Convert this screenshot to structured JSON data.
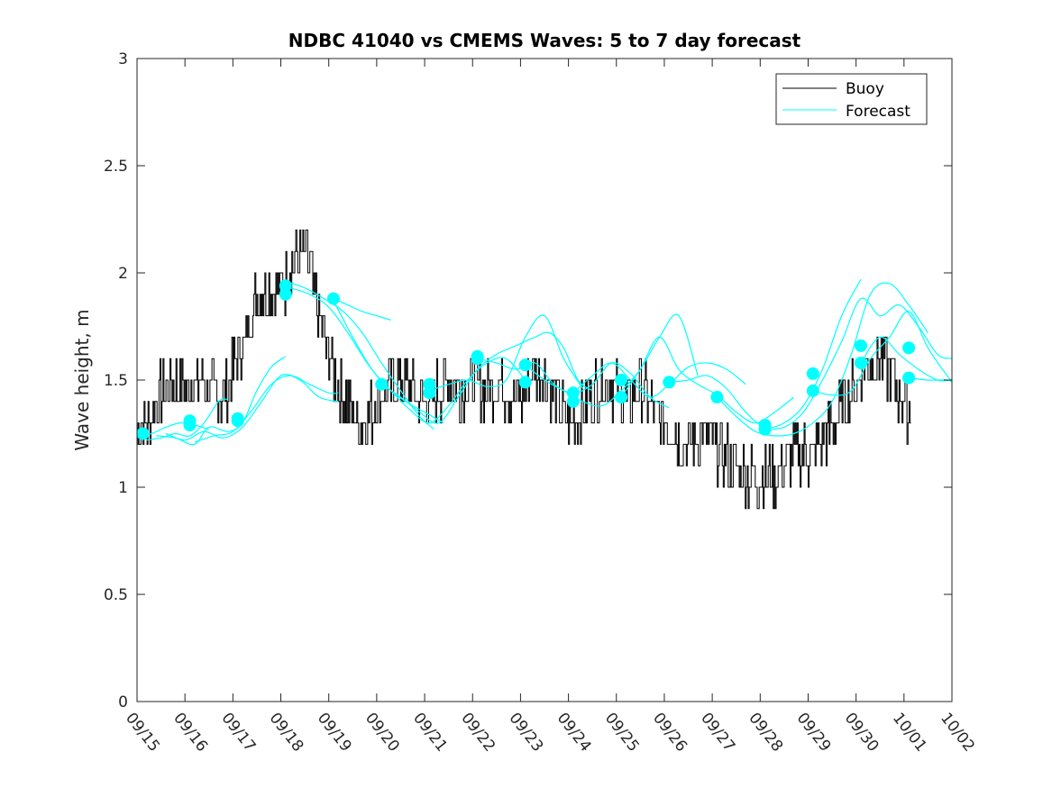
{
  "chart_data": {
    "type": "line",
    "title": "NDBC 41040 vs CMEMS Waves: 5 to 7 day forecast",
    "xlabel": "",
    "ylabel": "Wave height, m",
    "xlim": [
      0,
      17
    ],
    "ylim": [
      0,
      3
    ],
    "x_ticks": [
      0,
      1,
      2,
      3,
      4,
      5,
      6,
      7,
      8,
      9,
      10,
      11,
      12,
      13,
      14,
      15,
      16,
      17
    ],
    "x_tick_labels": [
      "09/15",
      "09/16",
      "09/17",
      "09/18",
      "09/19",
      "09/20",
      "09/21",
      "09/22",
      "09/23",
      "09/24",
      "09/25",
      "09/26",
      "09/27",
      "09/28",
      "09/29",
      "09/30",
      "10/01",
      "10/02"
    ],
    "y_ticks": [
      0,
      0.5,
      1,
      1.5,
      2,
      2.5,
      3
    ],
    "y_tick_labels": [
      "0",
      "0.5",
      "1",
      "1.5",
      "2",
      "2.5",
      "3"
    ],
    "grid": false,
    "legend": {
      "position": "top-right",
      "entries": [
        {
          "name": "Buoy",
          "color": "#000000"
        },
        {
          "name": "Forecast",
          "color": "#00ffff"
        }
      ]
    },
    "colors": {
      "buoy": "#000000",
      "forecast": "#00ffff"
    },
    "buoy": {
      "name": "Buoy",
      "x": [
        0,
        0.25,
        0.5,
        0.75,
        1,
        1.25,
        1.5,
        1.75,
        2,
        2.25,
        2.5,
        2.75,
        3,
        3.25,
        3.5,
        3.75,
        4,
        4.25,
        4.5,
        4.75,
        5,
        5.25,
        5.5,
        5.75,
        6,
        6.25,
        6.5,
        6.75,
        7,
        7.25,
        7.5,
        7.75,
        8,
        8.25,
        8.5,
        8.75,
        9,
        9.25,
        9.5,
        9.75,
        10,
        10.25,
        10.5,
        10.75,
        11,
        11.25,
        11.5,
        11.75,
        12,
        12.25,
        12.5,
        12.75,
        13,
        13.25,
        13.5,
        13.75,
        14,
        14.25,
        14.5,
        14.75,
        15,
        15.25,
        15.5,
        15.75,
        16,
        16.15
      ],
      "y": [
        1.25,
        1.3,
        1.45,
        1.5,
        1.45,
        1.5,
        1.45,
        1.4,
        1.55,
        1.7,
        1.9,
        1.95,
        1.9,
        2.05,
        2.1,
        1.85,
        1.6,
        1.45,
        1.35,
        1.3,
        1.4,
        1.45,
        1.5,
        1.45,
        1.4,
        1.45,
        1.5,
        1.45,
        1.5,
        1.45,
        1.5,
        1.45,
        1.4,
        1.55,
        1.5,
        1.4,
        1.3,
        1.35,
        1.45,
        1.5,
        1.45,
        1.4,
        1.5,
        1.35,
        1.3,
        1.25,
        1.2,
        1.25,
        1.2,
        1.15,
        1.1,
        1.05,
        1.05,
        1.05,
        1.1,
        1.15,
        1.15,
        1.2,
        1.3,
        1.4,
        1.5,
        1.6,
        1.6,
        1.5,
        1.4,
        1.35
      ]
    },
    "forecast": {
      "name": "Forecast",
      "series": [
        {
          "x": [
            0,
            0.3,
            0.6,
            0.9,
            1.2,
            1.5
          ],
          "y": [
            1.24,
            1.25,
            1.28,
            1.3,
            1.29,
            1.27
          ]
        },
        {
          "x": [
            0.2,
            0.5,
            0.8,
            1.1,
            1.4,
            1.7,
            1.9
          ],
          "y": [
            1.22,
            1.23,
            1.25,
            1.24,
            1.3,
            1.4,
            1.41
          ]
        },
        {
          "x": [
            0.4,
            0.8,
            1.2,
            1.5,
            1.9,
            2.2,
            2.5,
            2.8,
            3.1
          ],
          "y": [
            1.24,
            1.23,
            1.2,
            1.28,
            1.26,
            1.3,
            1.45,
            1.56,
            1.61
          ]
        },
        {
          "x": [
            0.6,
            1,
            1.4,
            1.8,
            2.2,
            2.6,
            3,
            3.4,
            3.8,
            4.2
          ],
          "y": [
            1.25,
            1.22,
            1.26,
            1.23,
            1.28,
            1.4,
            1.52,
            1.5,
            1.42,
            1.4
          ]
        },
        {
          "x": [
            1.2,
            1.6,
            2,
            2.4,
            2.8,
            3.2,
            3.6,
            4,
            4.2
          ],
          "y": [
            1.21,
            1.24,
            1.26,
            1.36,
            1.48,
            1.52,
            1.48,
            1.44,
            1.44
          ]
        },
        {
          "x": [
            3.1,
            3.5,
            3.9,
            4.3,
            4.7,
            5.1,
            5.5,
            5.9,
            6.2
          ],
          "y": [
            1.96,
            1.93,
            1.88,
            1.82,
            1.72,
            1.58,
            1.45,
            1.33,
            1.27
          ]
        },
        {
          "x": [
            3.2,
            3.6,
            4,
            4.4,
            4.8,
            5.2,
            5.6,
            6,
            6.4
          ],
          "y": [
            1.93,
            1.9,
            1.84,
            1.72,
            1.58,
            1.47,
            1.4,
            1.35,
            1.3
          ]
        },
        {
          "x": [
            4.1,
            4.4,
            4.7,
            5,
            5.3
          ],
          "y": [
            1.88,
            1.85,
            1.82,
            1.8,
            1.78
          ]
        },
        {
          "x": [
            4.1,
            4.5,
            4.9,
            5.3,
            5.7,
            6.1,
            6.5,
            6.9,
            7.3,
            7.7,
            8.1
          ],
          "y": [
            1.87,
            1.7,
            1.55,
            1.45,
            1.36,
            1.3,
            1.38,
            1.5,
            1.58,
            1.6,
            1.5
          ]
        },
        {
          "x": [
            5.1,
            5.5,
            5.9,
            6.3,
            6.7,
            7.1,
            7.5,
            7.9,
            8.3,
            8.6,
            8.9,
            9.2,
            9.5
          ],
          "y": [
            1.48,
            1.42,
            1.35,
            1.3,
            1.42,
            1.55,
            1.62,
            1.66,
            1.7,
            1.72,
            1.65,
            1.5,
            1.45
          ]
        },
        {
          "x": [
            6.1,
            6.5,
            6.9,
            7.3,
            7.7,
            8.1,
            8.5,
            8.9,
            9.3
          ],
          "y": [
            1.45,
            1.48,
            1.5,
            1.47,
            1.5,
            1.7,
            1.8,
            1.6,
            1.46
          ]
        },
        {
          "x": [
            7.1,
            7.5,
            7.9,
            8.3,
            8.7,
            9.1,
            9.5,
            9.9,
            10.3,
            10.7,
            11.1
          ],
          "y": [
            1.6,
            1.58,
            1.55,
            1.58,
            1.48,
            1.44,
            1.48,
            1.58,
            1.53,
            1.42,
            1.37
          ]
        },
        {
          "x": [
            8.1,
            8.5,
            8.9,
            9.3,
            9.7,
            10.1,
            10.5,
            10.9,
            11.3,
            11.7
          ],
          "y": [
            1.57,
            1.5,
            1.45,
            1.4,
            1.38,
            1.45,
            1.55,
            1.7,
            1.8,
            1.52
          ]
        },
        {
          "x": [
            9.1,
            9.5,
            9.9,
            10.3,
            10.7,
            11.1,
            11.5,
            11.9,
            12.3,
            12.7
          ],
          "y": [
            1.44,
            1.52,
            1.58,
            1.5,
            1.42,
            1.48,
            1.56,
            1.58,
            1.55,
            1.48
          ]
        },
        {
          "x": [
            10.1,
            10.5,
            10.9,
            11.3,
            11.7,
            12.1,
            12.5,
            12.9,
            13.3,
            13.7
          ],
          "y": [
            1.42,
            1.55,
            1.7,
            1.55,
            1.48,
            1.43,
            1.35,
            1.3,
            1.35,
            1.42
          ]
        },
        {
          "x": [
            11.1,
            11.5,
            11.9,
            12.3,
            12.7,
            13.1,
            13.5,
            13.9,
            14.3,
            14.7,
            15.1
          ],
          "y": [
            1.49,
            1.5,
            1.52,
            1.46,
            1.35,
            1.28,
            1.3,
            1.38,
            1.55,
            1.8,
            1.97
          ]
        },
        {
          "x": [
            12.1,
            12.5,
            12.9,
            13.3,
            13.7,
            14.1,
            14.5,
            14.9,
            15.3,
            15.7,
            16.1,
            16.5
          ],
          "y": [
            1.42,
            1.33,
            1.26,
            1.24,
            1.25,
            1.3,
            1.4,
            1.62,
            1.9,
            1.95,
            1.85,
            1.72
          ]
        },
        {
          "x": [
            13.1,
            13.5,
            13.9,
            14.3,
            14.7,
            15.1,
            15.5,
            15.9,
            16.3,
            16.7,
            17
          ],
          "y": [
            1.27,
            1.28,
            1.35,
            1.5,
            1.68,
            1.88,
            1.8,
            1.85,
            1.75,
            1.62,
            1.6
          ]
        },
        {
          "x": [
            14.1,
            14.5,
            14.9,
            15.3,
            15.7,
            16.1,
            16.5,
            16.9,
            17
          ],
          "y": [
            1.45,
            1.43,
            1.45,
            1.6,
            1.7,
            1.82,
            1.65,
            1.52,
            1.5
          ]
        },
        {
          "x": [
            15.1,
            15.5,
            15.9,
            16.3,
            16.7,
            17
          ],
          "y": [
            1.58,
            1.7,
            1.62,
            1.55,
            1.5,
            1.5
          ]
        },
        {
          "x": [
            16.1,
            16.5,
            16.9,
            17
          ],
          "y": [
            1.51,
            1.5,
            1.5,
            1.49
          ]
        }
      ],
      "dots": [
        {
          "x": 0.12,
          "y": 1.25
        },
        {
          "x": 1.1,
          "y": 1.31
        },
        {
          "x": 1.1,
          "y": 1.29
        },
        {
          "x": 2.1,
          "y": 1.32
        },
        {
          "x": 2.1,
          "y": 1.31
        },
        {
          "x": 3.1,
          "y": 1.94
        },
        {
          "x": 3.1,
          "y": 1.9
        },
        {
          "x": 4.1,
          "y": 1.88
        },
        {
          "x": 5.1,
          "y": 1.48
        },
        {
          "x": 6.1,
          "y": 1.48
        },
        {
          "x": 6.1,
          "y": 1.44
        },
        {
          "x": 7.1,
          "y": 1.61
        },
        {
          "x": 7.1,
          "y": 1.6
        },
        {
          "x": 8.1,
          "y": 1.57
        },
        {
          "x": 8.1,
          "y": 1.49
        },
        {
          "x": 9.1,
          "y": 1.44
        },
        {
          "x": 9.1,
          "y": 1.4
        },
        {
          "x": 10.1,
          "y": 1.5
        },
        {
          "x": 10.1,
          "y": 1.42
        },
        {
          "x": 11.1,
          "y": 1.49
        },
        {
          "x": 12.1,
          "y": 1.42
        },
        {
          "x": 13.1,
          "y": 1.29
        },
        {
          "x": 13.1,
          "y": 1.27
        },
        {
          "x": 14.1,
          "y": 1.53
        },
        {
          "x": 14.1,
          "y": 1.45
        },
        {
          "x": 15.1,
          "y": 1.66
        },
        {
          "x": 15.1,
          "y": 1.58
        },
        {
          "x": 16.1,
          "y": 1.65
        },
        {
          "x": 16.1,
          "y": 1.51
        }
      ]
    }
  }
}
